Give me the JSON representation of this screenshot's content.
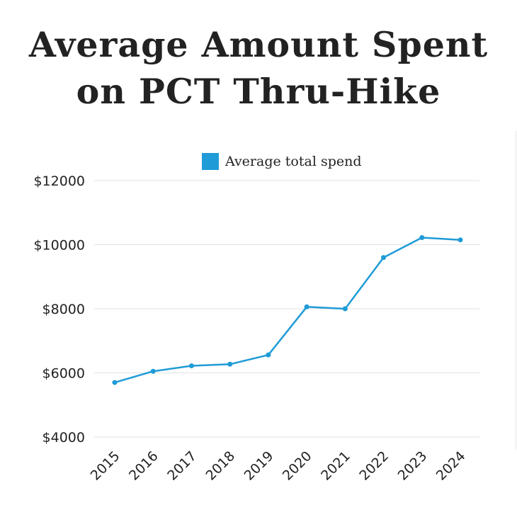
{
  "title_line1": "Average Amount Spent",
  "title_line2": "on PCT Thru-Hike",
  "chart_data": {
    "type": "line",
    "title": "Average Amount Spent on PCT Thru-Hike",
    "xlabel": "",
    "ylabel": "",
    "categories": [
      "2015",
      "2016",
      "2017",
      "2018",
      "2019",
      "2020",
      "2021",
      "2022",
      "2023",
      "2024"
    ],
    "series": [
      {
        "name": "Average total spend",
        "color": "#1f9bd7",
        "values": [
          5700,
          6050,
          6220,
          6270,
          6560,
          8060,
          8000,
          9600,
          10220,
          10150
        ]
      }
    ],
    "ylim": [
      4000,
      12000
    ],
    "yticks": [
      4000,
      6000,
      8000,
      10000,
      12000
    ],
    "ytick_labels": [
      "$4000",
      "$6000",
      "$8000",
      "$10000",
      "$12000"
    ],
    "grid": true,
    "legend": "top-center"
  }
}
